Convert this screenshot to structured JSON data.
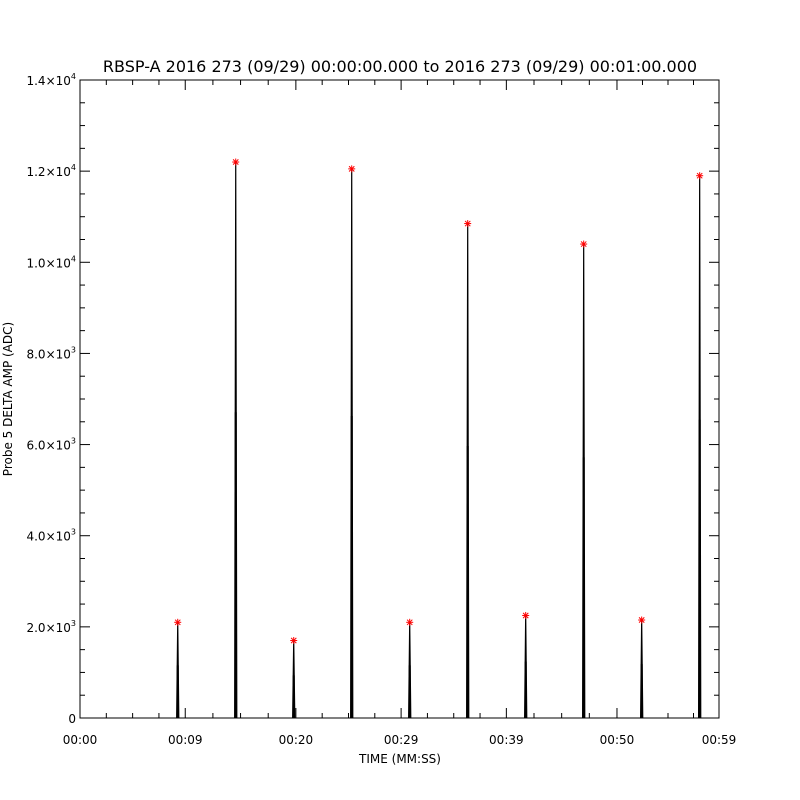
{
  "chart_data": {
    "type": "line",
    "title": "RBSP-A 2016 273 (09/29) 00:00:00.000 to 2016 273 (09/29) 00:01:00.000",
    "xlabel": "TIME (MM:SS)",
    "ylabel": "Probe 5 DELTA AMP (ADC)",
    "xlim": [
      0,
      59.5
    ],
    "ylim": [
      0,
      14000
    ],
    "grid": false,
    "legend": "none",
    "x_ticks": [
      {
        "value": 0,
        "label": "00:00"
      },
      {
        "value": 9.8,
        "label": "00:09"
      },
      {
        "value": 20.1,
        "label": "00:20"
      },
      {
        "value": 29.9,
        "label": "00:29"
      },
      {
        "value": 39.7,
        "label": "00:39"
      },
      {
        "value": 50.0,
        "label": "00:50"
      },
      {
        "value": 59.5,
        "label": "00:59"
      }
    ],
    "y_ticks": [
      {
        "value": 0,
        "mant": "0",
        "exp": ""
      },
      {
        "value": 2000,
        "mant": "2.0×10",
        "exp": "3"
      },
      {
        "value": 4000,
        "mant": "4.0×10",
        "exp": "3"
      },
      {
        "value": 6000,
        "mant": "6.0×10",
        "exp": "3"
      },
      {
        "value": 8000,
        "mant": "8.0×10",
        "exp": "3"
      },
      {
        "value": 10000,
        "mant": "1.0×10",
        "exp": "4"
      },
      {
        "value": 12000,
        "mant": "1.2×10",
        "exp": "4"
      },
      {
        "value": 14000,
        "mant": "1.4×10",
        "exp": "4"
      }
    ],
    "series": [
      {
        "line_color": "#000000",
        "marker_color": "#ff0000",
        "marker": "asterisk",
        "peaks": [
          {
            "x": 9.1,
            "y": 2100
          },
          {
            "x": 14.5,
            "y": 12200
          },
          {
            "x": 19.9,
            "y": 1700
          },
          {
            "x": 25.3,
            "y": 12050
          },
          {
            "x": 30.7,
            "y": 2100
          },
          {
            "x": 36.1,
            "y": 10850
          },
          {
            "x": 41.5,
            "y": 2250
          },
          {
            "x": 46.9,
            "y": 10400
          },
          {
            "x": 52.3,
            "y": 2150
          },
          {
            "x": 57.7,
            "y": 11900
          }
        ]
      }
    ]
  }
}
